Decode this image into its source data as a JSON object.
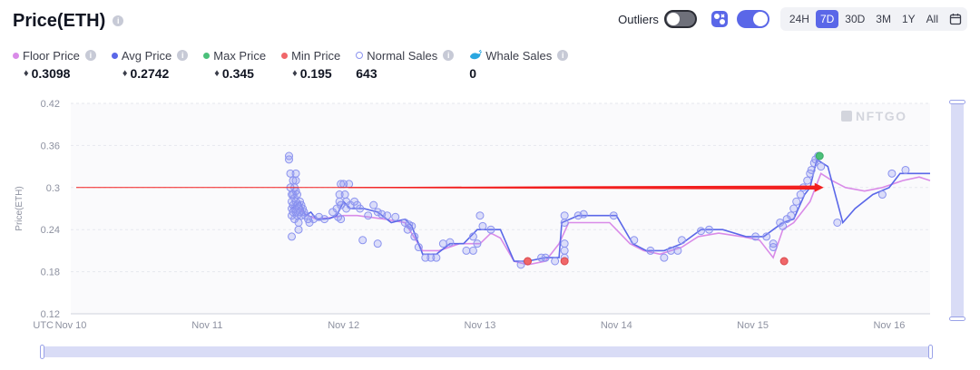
{
  "header": {
    "title": "Price(ETH)",
    "outliers_label": "Outliers",
    "outliers_on": false,
    "whale_toggle_on": true,
    "ranges": [
      "24H",
      "7D",
      "30D",
      "3M",
      "1Y",
      "All"
    ],
    "active_range": "7D",
    "eth_symbol": "♦"
  },
  "stats": [
    {
      "label": "Floor Price",
      "value": "0.3098",
      "marker": "dot",
      "color": "#d98be8",
      "eth": true
    },
    {
      "label": "Avg Price",
      "value": "0.2742",
      "marker": "dot",
      "color": "#5a67e8",
      "eth": true
    },
    {
      "label": "Max Price",
      "value": "0.345",
      "marker": "dot",
      "color": "#4bc07a",
      "eth": true
    },
    {
      "label": "Min Price",
      "value": "0.195",
      "marker": "dot",
      "color": "#f0676a",
      "eth": true
    },
    {
      "label": "Normal Sales",
      "value": "643",
      "marker": "hollow",
      "color": "#8b93ef",
      "eth": false
    },
    {
      "label": "Whale Sales",
      "value": "0",
      "marker": "whale",
      "color": "#2aa7e0",
      "eth": false
    }
  ],
  "chart_data": {
    "type": "scatter",
    "ylabel": "Price(ETH)",
    "ylim": [
      0.12,
      0.42
    ],
    "xlim": [
      0,
      6.3
    ],
    "y_ticks": [
      "0.12",
      "0.18",
      "0.24",
      "0.3",
      "0.36",
      "0.42"
    ],
    "x_ticks": [
      {
        "x": 0,
        "label": "Nov 10",
        "prefix": "UTC"
      },
      {
        "x": 1,
        "label": "Nov 11"
      },
      {
        "x": 2,
        "label": "Nov 12"
      },
      {
        "x": 3,
        "label": "Nov 13"
      },
      {
        "x": 4,
        "label": "Nov 14"
      },
      {
        "x": 5,
        "label": "Nov 15"
      },
      {
        "x": 6,
        "label": "Nov 16"
      }
    ],
    "watermark": "NFTGO",
    "grid": true,
    "colors": {
      "avg": "#5a67e8",
      "floor": "#d98be8",
      "normal": "#8b93ef",
      "max": "#4bc07a",
      "min": "#f0676a",
      "arrow": "#f21f1f"
    },
    "annotation_arrow": {
      "x_start": 0.04,
      "x_end": 5.52,
      "y": 0.3
    },
    "series": [
      {
        "name": "Avg Price",
        "kind": "line",
        "points": [
          [
            1.62,
            0.27
          ],
          [
            1.68,
            0.28
          ],
          [
            1.72,
            0.26
          ],
          [
            1.76,
            0.265
          ],
          [
            1.8,
            0.255
          ],
          [
            1.85,
            0.255
          ],
          [
            1.9,
            0.256
          ],
          [
            1.95,
            0.26
          ],
          [
            2.0,
            0.28
          ],
          [
            2.05,
            0.27
          ],
          [
            2.1,
            0.27
          ],
          [
            2.15,
            0.27
          ],
          [
            2.25,
            0.265
          ],
          [
            2.35,
            0.25
          ],
          [
            2.45,
            0.255
          ],
          [
            2.5,
            0.245
          ],
          [
            2.58,
            0.205
          ],
          [
            2.68,
            0.205
          ],
          [
            2.78,
            0.22
          ],
          [
            2.88,
            0.22
          ],
          [
            2.98,
            0.24
          ],
          [
            3.08,
            0.24
          ],
          [
            3.15,
            0.24
          ],
          [
            3.25,
            0.195
          ],
          [
            3.35,
            0.195
          ],
          [
            3.48,
            0.2
          ],
          [
            3.58,
            0.2
          ],
          [
            3.6,
            0.25
          ],
          [
            3.72,
            0.26
          ],
          [
            3.85,
            0.26
          ],
          [
            4.0,
            0.26
          ],
          [
            4.12,
            0.22
          ],
          [
            4.22,
            0.21
          ],
          [
            4.35,
            0.21
          ],
          [
            4.48,
            0.22
          ],
          [
            4.62,
            0.24
          ],
          [
            4.78,
            0.24
          ],
          [
            4.95,
            0.23
          ],
          [
            5.08,
            0.23
          ],
          [
            5.15,
            0.24
          ],
          [
            5.22,
            0.25
          ],
          [
            5.3,
            0.255
          ],
          [
            5.38,
            0.29
          ],
          [
            5.42,
            0.3
          ],
          [
            5.47,
            0.34
          ],
          [
            5.55,
            0.33
          ],
          [
            5.66,
            0.25
          ],
          [
            5.75,
            0.27
          ],
          [
            5.88,
            0.29
          ],
          [
            6.0,
            0.3
          ],
          [
            6.08,
            0.32
          ],
          [
            6.18,
            0.32
          ],
          [
            6.3,
            0.32
          ]
        ]
      },
      {
        "name": "Floor Price",
        "kind": "line",
        "points": [
          [
            1.62,
            0.27
          ],
          [
            1.68,
            0.27
          ],
          [
            1.72,
            0.262
          ],
          [
            1.8,
            0.255
          ],
          [
            1.9,
            0.257
          ],
          [
            2.0,
            0.26
          ],
          [
            2.1,
            0.26
          ],
          [
            2.3,
            0.255
          ],
          [
            2.45,
            0.25
          ],
          [
            2.58,
            0.21
          ],
          [
            2.7,
            0.21
          ],
          [
            2.85,
            0.22
          ],
          [
            3.0,
            0.22
          ],
          [
            3.08,
            0.235
          ],
          [
            3.15,
            0.228
          ],
          [
            3.25,
            0.195
          ],
          [
            3.35,
            0.19
          ],
          [
            3.48,
            0.195
          ],
          [
            3.58,
            0.22
          ],
          [
            3.65,
            0.25
          ],
          [
            3.8,
            0.25
          ],
          [
            3.95,
            0.25
          ],
          [
            4.1,
            0.22
          ],
          [
            4.2,
            0.21
          ],
          [
            4.32,
            0.205
          ],
          [
            4.48,
            0.215
          ],
          [
            4.6,
            0.23
          ],
          [
            4.75,
            0.235
          ],
          [
            4.92,
            0.23
          ],
          [
            5.05,
            0.225
          ],
          [
            5.15,
            0.2
          ],
          [
            5.22,
            0.24
          ],
          [
            5.3,
            0.25
          ],
          [
            5.42,
            0.28
          ],
          [
            5.5,
            0.32
          ],
          [
            5.58,
            0.31
          ],
          [
            5.68,
            0.3
          ],
          [
            5.82,
            0.295
          ],
          [
            5.95,
            0.3
          ],
          [
            6.1,
            0.31
          ],
          [
            6.22,
            0.315
          ],
          [
            6.3,
            0.31
          ]
        ]
      },
      {
        "name": "Normal Sales",
        "kind": "scatter",
        "points": [
          [
            1.6,
            0.345
          ],
          [
            1.6,
            0.34
          ],
          [
            1.61,
            0.32
          ],
          [
            1.61,
            0.3
          ],
          [
            1.62,
            0.29
          ],
          [
            1.62,
            0.28
          ],
          [
            1.62,
            0.27
          ],
          [
            1.62,
            0.26
          ],
          [
            1.62,
            0.23
          ],
          [
            1.63,
            0.31
          ],
          [
            1.63,
            0.29
          ],
          [
            1.63,
            0.275
          ],
          [
            1.63,
            0.265
          ],
          [
            1.64,
            0.3
          ],
          [
            1.64,
            0.285
          ],
          [
            1.64,
            0.27
          ],
          [
            1.64,
            0.255
          ],
          [
            1.65,
            0.32
          ],
          [
            1.65,
            0.31
          ],
          [
            1.65,
            0.295
          ],
          [
            1.65,
            0.28
          ],
          [
            1.65,
            0.265
          ],
          [
            1.66,
            0.29
          ],
          [
            1.66,
            0.275
          ],
          [
            1.66,
            0.26
          ],
          [
            1.67,
            0.27
          ],
          [
            1.67,
            0.25
          ],
          [
            1.67,
            0.24
          ],
          [
            1.68,
            0.28
          ],
          [
            1.68,
            0.265
          ],
          [
            1.69,
            0.275
          ],
          [
            1.69,
            0.26
          ],
          [
            1.7,
            0.27
          ],
          [
            1.71,
            0.265
          ],
          [
            1.72,
            0.26
          ],
          [
            1.74,
            0.255
          ],
          [
            1.75,
            0.25
          ],
          [
            1.78,
            0.255
          ],
          [
            1.82,
            0.258
          ],
          [
            1.86,
            0.255
          ],
          [
            1.92,
            0.265
          ],
          [
            1.95,
            0.27
          ],
          [
            1.96,
            0.258
          ],
          [
            1.97,
            0.29
          ],
          [
            1.97,
            0.28
          ],
          [
            1.98,
            0.305
          ],
          [
            1.98,
            0.275
          ],
          [
            1.98,
            0.255
          ],
          [
            2.0,
            0.305
          ],
          [
            2.01,
            0.29
          ],
          [
            2.02,
            0.27
          ],
          [
            2.02,
            0.28
          ],
          [
            2.04,
            0.305
          ],
          [
            2.05,
            0.275
          ],
          [
            2.08,
            0.28
          ],
          [
            2.1,
            0.275
          ],
          [
            2.12,
            0.27
          ],
          [
            2.14,
            0.225
          ],
          [
            2.18,
            0.26
          ],
          [
            2.22,
            0.275
          ],
          [
            2.25,
            0.265
          ],
          [
            2.25,
            0.22
          ],
          [
            2.28,
            0.262
          ],
          [
            2.32,
            0.26
          ],
          [
            2.38,
            0.258
          ],
          [
            2.45,
            0.25
          ],
          [
            2.47,
            0.24
          ],
          [
            2.48,
            0.247
          ],
          [
            2.5,
            0.245
          ],
          [
            2.52,
            0.23
          ],
          [
            2.55,
            0.215
          ],
          [
            2.6,
            0.2
          ],
          [
            2.64,
            0.2
          ],
          [
            2.68,
            0.2
          ],
          [
            2.73,
            0.22
          ],
          [
            2.78,
            0.222
          ],
          [
            2.9,
            0.21
          ],
          [
            2.95,
            0.23
          ],
          [
            2.95,
            0.21
          ],
          [
            2.98,
            0.22
          ],
          [
            3.0,
            0.26
          ],
          [
            3.02,
            0.245
          ],
          [
            3.08,
            0.24
          ],
          [
            3.3,
            0.19
          ],
          [
            3.45,
            0.2
          ],
          [
            3.48,
            0.2
          ],
          [
            3.55,
            0.195
          ],
          [
            3.62,
            0.26
          ],
          [
            3.62,
            0.25
          ],
          [
            3.62,
            0.22
          ],
          [
            3.62,
            0.21
          ],
          [
            3.62,
            0.2
          ],
          [
            3.72,
            0.26
          ],
          [
            3.76,
            0.262
          ],
          [
            3.98,
            0.26
          ],
          [
            4.13,
            0.225
          ],
          [
            4.25,
            0.21
          ],
          [
            4.35,
            0.2
          ],
          [
            4.4,
            0.21
          ],
          [
            4.45,
            0.21
          ],
          [
            4.48,
            0.225
          ],
          [
            4.62,
            0.238
          ],
          [
            4.68,
            0.24
          ],
          [
            5.02,
            0.23
          ],
          [
            5.1,
            0.23
          ],
          [
            5.15,
            0.22
          ],
          [
            5.15,
            0.215
          ],
          [
            5.2,
            0.25
          ],
          [
            5.22,
            0.245
          ],
          [
            5.25,
            0.255
          ],
          [
            5.28,
            0.26
          ],
          [
            5.3,
            0.27
          ],
          [
            5.32,
            0.28
          ],
          [
            5.35,
            0.29
          ],
          [
            5.37,
            0.3
          ],
          [
            5.4,
            0.31
          ],
          [
            5.42,
            0.32
          ],
          [
            5.43,
            0.325
          ],
          [
            5.45,
            0.335
          ],
          [
            5.46,
            0.34
          ],
          [
            5.48,
            0.345
          ],
          [
            5.5,
            0.33
          ],
          [
            5.62,
            0.25
          ],
          [
            5.95,
            0.29
          ],
          [
            6.02,
            0.32
          ],
          [
            6.12,
            0.325
          ]
        ]
      },
      {
        "name": "Max Price",
        "kind": "scatter",
        "points": [
          [
            5.49,
            0.345
          ]
        ]
      },
      {
        "name": "Min Price",
        "kind": "scatter",
        "points": [
          [
            3.35,
            0.195
          ],
          [
            3.62,
            0.195
          ],
          [
            5.23,
            0.195
          ]
        ]
      }
    ]
  }
}
